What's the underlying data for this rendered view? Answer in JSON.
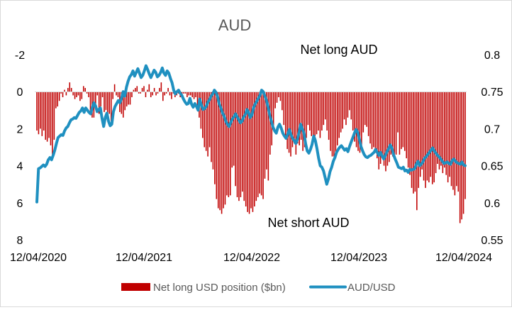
{
  "chart_data": {
    "type": "bar+line",
    "title": "AUD",
    "annotations": [
      "Net long AUD",
      "Net short AUD"
    ],
    "x_tick_labels": [
      "12/04/2020",
      "12/04/2021",
      "12/04/2022",
      "12/04/2023",
      "12/04/2024"
    ],
    "y_left": {
      "ticks": [
        -2,
        0,
        2,
        4,
        6,
        8
      ],
      "range": [
        -2,
        8
      ],
      "inverted": true
    },
    "y_right": {
      "ticks": [
        0.8,
        0.75,
        0.7,
        0.65,
        0.6,
        0.55
      ],
      "range": [
        0.55,
        0.8
      ]
    },
    "grid": false,
    "legend_position": "bottom",
    "series": [
      {
        "name": "Net long USD position ($bn)",
        "kind": "bar",
        "color": "#c00000",
        "values": [
          2.1,
          2.3,
          2.0,
          2.4,
          2.1,
          2.6,
          2.7,
          2.5,
          2.9,
          3.4,
          2.6,
          0.9,
          0.8,
          0.5,
          0.1,
          0.3,
          -0.1,
          0.2,
          -0.2,
          -0.5,
          -0.2,
          0.2,
          0.4,
          0.3,
          0.2,
          0.5,
          0.4,
          -0.3,
          -0.2,
          0.1,
          0.3,
          1.2,
          1.4,
          1.4,
          0.8,
          0.2,
          1.2,
          0.8,
          0.3,
          1.1,
          1.0,
          1.4,
          1.2,
          1.6,
          0.4,
          -0.4,
          0.2,
          0.3,
          1.1,
          1.2,
          1.4,
          1.0,
          0.8,
          0.7,
          0.7,
          0.3,
          -0.1,
          -0.2,
          -0.3,
          0.1,
          0.1,
          -0.2,
          -0.3,
          0.3,
          -0.1,
          -0.4,
          0.3,
          0.2,
          -0.2,
          0.2,
          0.1,
          -0.2,
          -0.5,
          0.5,
          0.2,
          0.1,
          -0.2,
          0.2,
          0.4,
          0.1,
          0.3,
          0.2,
          0.1,
          0.3,
          0.2,
          0.1,
          0.1,
          0.3,
          0.2,
          0.2,
          0.3,
          0.4,
          0.3,
          0.8,
          1.4,
          2.0,
          2.5,
          3.0,
          3.2,
          3.5,
          3.0,
          3.8,
          4.2,
          5.0,
          5.8,
          6.3,
          6.4,
          6.6,
          6.3,
          6.1,
          5.6,
          5.7,
          5.6,
          4.1,
          4.0,
          5.1,
          5.7,
          5.9,
          5.7,
          5.4,
          5.9,
          6.2,
          6.5,
          6.6,
          6.3,
          6.5,
          6.2,
          5.9,
          5.7,
          5.5,
          5.6,
          5.8,
          4.7,
          4.2,
          4.8,
          3.4,
          2.9,
          2.1,
          0.9,
          0.6,
          0.3,
          0.5,
          1.0,
          1.8,
          2.5,
          3.1,
          3.3,
          3.5,
          3.0,
          2.8,
          3.4,
          2.8,
          2.9,
          2.6,
          3.2,
          3.0,
          2.5,
          1.8,
          2.1,
          2.4,
          2.5,
          2.4,
          2.3,
          2.1,
          2.5,
          2.1,
          1.8,
          1.5,
          2.1,
          2.6,
          3.2,
          3.5,
          3.5,
          3.6,
          2.9,
          2.5,
          2.2,
          2.0,
          1.5,
          1.8,
          1.4,
          1.0,
          1.5,
          2.1,
          2.7,
          3.0,
          3.2,
          3.3,
          3.0,
          2.2,
          1.8,
          1.9,
          2.4,
          2.8,
          3.1,
          3.0,
          3.3,
          3.6,
          4.2,
          3.9,
          3.5,
          4.0,
          4.3,
          4.0,
          3.8,
          3.4,
          3.5,
          3.6,
          3.4,
          2.2,
          3.4,
          3.1,
          3.0,
          3.2,
          3.6,
          4.1,
          4.5,
          5.2,
          5.5,
          5.4,
          6.4,
          5.2,
          4.6,
          4.2,
          4.8,
          5.2,
          4.8,
          4.9,
          4.6,
          5.0,
          4.9,
          4.4,
          3.9,
          4.2,
          4.0,
          4.4,
          4.1,
          4.5,
          4.9,
          4.6,
          5.1,
          5.3,
          5.6,
          5.1,
          5.4,
          7.1,
          6.9,
          6.6,
          5.8
        ]
      },
      {
        "name": "AUD/USD",
        "kind": "line",
        "color": "#1f90c0",
        "values": [
          0.601,
          0.646,
          0.647,
          0.649,
          0.651,
          0.649,
          0.652,
          0.658,
          0.661,
          0.658,
          0.664,
          0.671,
          0.68,
          0.688,
          0.69,
          0.692,
          0.691,
          0.697,
          0.701,
          0.703,
          0.708,
          0.712,
          0.713,
          0.715,
          0.714,
          0.718,
          0.722,
          0.724,
          0.728,
          0.722,
          0.728,
          0.725,
          0.722,
          0.72,
          0.728,
          0.735,
          0.731,
          0.723,
          0.726,
          0.728,
          0.714,
          0.703,
          0.715,
          0.721,
          0.71,
          0.704,
          0.706,
          0.723,
          0.73,
          0.734,
          0.738,
          0.735,
          0.741,
          0.75,
          0.744,
          0.756,
          0.764,
          0.77,
          0.773,
          0.778,
          0.771,
          0.776,
          0.781,
          0.775,
          0.769,
          0.772,
          0.778,
          0.785,
          0.78,
          0.774,
          0.769,
          0.774,
          0.779,
          0.776,
          0.77,
          0.772,
          0.776,
          0.782,
          0.775,
          0.772,
          0.778,
          0.775,
          0.768,
          0.762,
          0.752,
          0.747,
          0.75,
          0.752,
          0.748,
          0.745,
          0.74,
          0.736,
          0.733,
          0.734,
          0.741,
          0.733,
          0.729,
          0.734,
          0.73,
          0.725,
          0.74,
          0.732,
          0.726,
          0.727,
          0.73,
          0.736,
          0.739,
          0.744,
          0.747,
          0.752,
          0.749,
          0.743,
          0.733,
          0.728,
          0.721,
          0.717,
          0.71,
          0.706,
          0.703,
          0.708,
          0.713,
          0.716,
          0.72,
          0.716,
          0.712,
          0.708,
          0.71,
          0.716,
          0.719,
          0.726,
          0.722,
          0.715,
          0.718,
          0.728,
          0.733,
          0.737,
          0.741,
          0.745,
          0.752,
          0.75,
          0.744,
          0.738,
          0.729,
          0.718,
          0.71,
          0.702,
          0.697,
          0.694,
          0.702,
          0.706,
          0.701,
          0.694,
          0.69,
          0.687,
          0.692,
          0.699,
          0.692,
          0.687,
          0.684,
          0.68,
          0.686,
          0.695,
          0.706,
          0.7,
          0.694,
          0.68,
          0.67,
          0.667,
          0.672,
          0.679,
          0.69,
          0.684,
          0.673,
          0.66,
          0.65,
          0.648,
          0.643,
          0.634,
          0.625,
          0.632,
          0.642,
          0.648,
          0.656,
          0.661,
          0.668,
          0.672,
          0.675,
          0.677,
          0.674,
          0.671,
          0.673,
          0.669,
          0.676,
          0.682,
          0.688,
          0.694,
          0.699,
          0.695,
          0.686,
          0.676,
          0.67,
          0.665,
          0.662,
          0.661,
          0.663,
          0.664,
          0.666,
          0.668,
          0.672,
          0.668,
          0.664,
          0.668,
          0.663,
          0.659,
          0.664,
          0.669,
          0.673,
          0.678,
          0.674,
          0.665,
          0.659,
          0.654,
          0.648,
          0.647,
          0.646,
          0.648,
          0.643,
          0.644,
          0.641,
          0.645,
          0.644,
          0.645,
          0.646,
          0.652,
          0.656,
          0.65,
          0.652,
          0.655,
          0.66,
          0.662,
          0.665,
          0.668,
          0.671,
          0.674,
          0.67,
          0.667,
          0.664,
          0.662,
          0.659,
          0.656,
          0.653,
          0.654,
          0.655,
          0.653,
          0.652,
          0.657,
          0.659,
          0.656,
          0.654,
          0.653,
          0.652,
          0.655,
          0.651,
          0.65
        ]
      }
    ]
  }
}
